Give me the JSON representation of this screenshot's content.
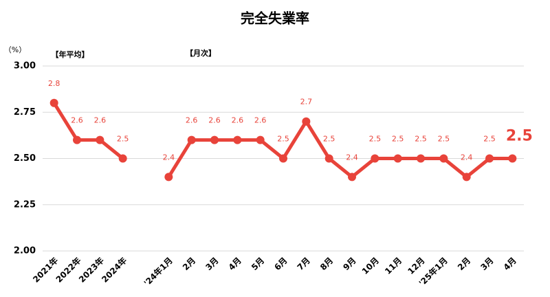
{
  "chart_data": {
    "type": "line",
    "title": "完全失業率",
    "y_unit": "（%）",
    "annotations": [
      "【年平均】",
      "【月次】"
    ],
    "categories": [
      "2021年",
      "2022年",
      "2023年",
      "2024年",
      null,
      "'24年1月",
      "2月",
      "3月",
      "4月",
      "5月",
      "6月",
      "7月",
      "8月",
      "9月",
      "10月",
      "11月",
      "12月",
      "'25年1月",
      "2月",
      "3月",
      "4月"
    ],
    "series": [
      {
        "name": "完全失業率",
        "color": "#e8433a",
        "values": [
          2.8,
          2.6,
          2.6,
          2.5,
          null,
          2.4,
          2.6,
          2.6,
          2.6,
          2.6,
          2.5,
          2.7,
          2.5,
          2.4,
          2.5,
          2.5,
          2.5,
          2.5,
          2.4,
          2.5,
          2.5
        ]
      }
    ],
    "ylim": [
      2,
      3
    ],
    "yticks": [
      {
        "value": 2,
        "label": "2.00"
      },
      {
        "value": 2.25,
        "label": "2.25"
      },
      {
        "value": 2.5,
        "label": "2.50"
      },
      {
        "value": 2.75,
        "label": "2.75"
      },
      {
        "value": 3,
        "label": "3.00"
      }
    ],
    "grid": true
  }
}
